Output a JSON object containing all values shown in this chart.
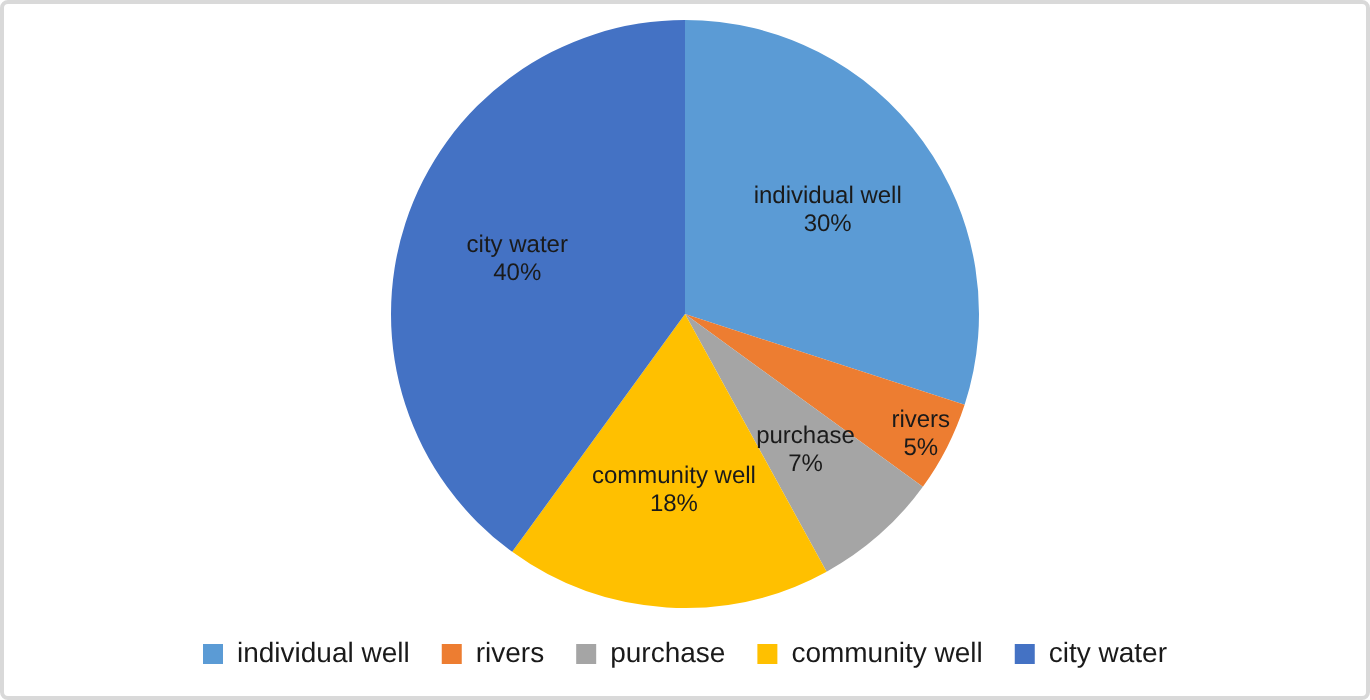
{
  "chart_data": {
    "type": "pie",
    "categories": [
      "individual well",
      "rivers",
      "purchase",
      "community well",
      "city water"
    ],
    "values": [
      30,
      5,
      7,
      18,
      40
    ],
    "colors": [
      "#5b9bd5",
      "#ed7d31",
      "#a5a5a5",
      "#ffc000",
      "#4472c4"
    ],
    "value_labels": [
      "30%",
      "5%",
      "7%",
      "18%",
      "40%"
    ],
    "legend": "bottom"
  }
}
